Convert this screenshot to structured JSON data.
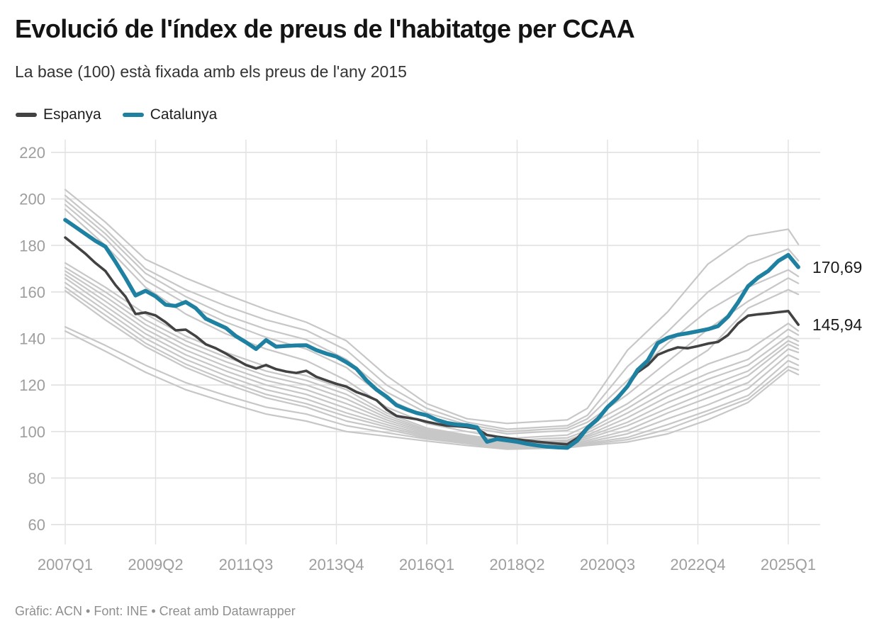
{
  "header": {
    "title": "Evolució de l'índex de preus de l'habitatge per CCAA",
    "subtitle": "La base (100) està fixada amb els preus de l'any 2015"
  },
  "legend": {
    "items": [
      {
        "label": "Espanya",
        "color": "#424242"
      },
      {
        "label": "Catalunya",
        "color": "#1f81a2"
      }
    ]
  },
  "footer": {
    "text": "Gràfic: ACN • Font: INE • Creat amb Datawrapper"
  },
  "chart_data": {
    "type": "line",
    "title": "Evolució de l'índex de preus de l'habitatge per CCAA",
    "subtitle": "La base (100) està fixada amb els preus de l'any 2015",
    "x_unit": "quarter index from 2007Q1 (one value per quarter, last = 2025Q2)",
    "x_axis": {
      "ticks": [
        {
          "label": "2007Q1",
          "q": 0
        },
        {
          "label": "2009Q2",
          "q": 9
        },
        {
          "label": "2011Q3",
          "q": 18
        },
        {
          "label": "2013Q4",
          "q": 27
        },
        {
          "label": "2016Q1",
          "q": 36
        },
        {
          "label": "2018Q2",
          "q": 45
        },
        {
          "label": "2020Q3",
          "q": 54
        },
        {
          "label": "2022Q4",
          "q": 63
        },
        {
          "label": "2025Q1",
          "q": 72
        }
      ],
      "quarters_total": 73
    },
    "y_axis": {
      "ticks": [
        220,
        200,
        180,
        160,
        140,
        120,
        100,
        80,
        60
      ],
      "min": 60,
      "max": 220
    },
    "grid": true,
    "legend_position": "top-left",
    "colors": {
      "catalunya": "#1f81a2",
      "espanya": "#424242",
      "other_regions": "#c7c7c7",
      "gridline": "#e2e2e2",
      "tick_text": "#9e9e9e",
      "end_label_text": "#1a1a1a"
    },
    "series": [
      {
        "name": "ccaa-01",
        "color": "#c7c7c7",
        "width": 2.2,
        "q": [
          0,
          4,
          8,
          12,
          16,
          20,
          24,
          28,
          32,
          36,
          40,
          44,
          48,
          50,
          52,
          56,
          60,
          64,
          68,
          72,
          73
        ],
        "values": [
          204,
          190,
          174,
          166,
          159,
          152.5,
          147,
          139,
          124,
          112,
          105.5,
          103.5,
          104.5,
          105,
          110,
          135,
          151.5,
          172,
          184,
          187,
          180.5
        ]
      },
      {
        "name": "ccaa-02",
        "color": "#c7c7c7",
        "width": 2.2,
        "q": [
          0,
          4,
          8,
          12,
          16,
          20,
          24,
          28,
          32,
          36,
          40,
          44,
          48,
          50,
          52,
          56,
          60,
          64,
          68,
          72,
          73
        ],
        "values": [
          201.5,
          187,
          170,
          161,
          154,
          148,
          143.5,
          135,
          120,
          110,
          104,
          101,
          102,
          102.5,
          107,
          128,
          143,
          160,
          172,
          178.5,
          173.5
        ]
      },
      {
        "name": "ccaa-03",
        "color": "#c7c7c7",
        "width": 2.2,
        "q": [
          0,
          4,
          8,
          12,
          16,
          20,
          24,
          28,
          32,
          36,
          40,
          44,
          48,
          50,
          52,
          56,
          60,
          64,
          68,
          72,
          73
        ],
        "values": [
          199.5,
          185,
          168,
          158,
          150,
          144,
          139.5,
          131,
          117,
          108,
          103,
          100,
          101,
          101.5,
          105.5,
          122,
          138,
          152,
          162,
          169.5,
          166.7
        ]
      },
      {
        "name": "ccaa-04",
        "color": "#c7c7c7",
        "width": 2.2,
        "q": [
          0,
          4,
          8,
          12,
          16,
          20,
          24,
          28,
          32,
          36,
          40,
          44,
          48,
          50,
          52,
          56,
          60,
          64,
          68,
          72,
          73
        ],
        "values": [
          197.5,
          183,
          165,
          155,
          147,
          140.5,
          135.5,
          127.5,
          114,
          106.5,
          102,
          99,
          100,
          100.5,
          104,
          116,
          130,
          144,
          156,
          166,
          163.7
        ]
      },
      {
        "name": "ccaa-05",
        "color": "#c7c7c7",
        "width": 2.2,
        "q": [
          0,
          4,
          8,
          12,
          16,
          20,
          24,
          28,
          32,
          36,
          40,
          44,
          48,
          50,
          52,
          56,
          60,
          64,
          68,
          72,
          73
        ],
        "values": [
          195.5,
          180,
          162,
          150.5,
          142,
          135.5,
          130.5,
          122,
          110.5,
          103.5,
          100,
          97,
          98,
          98.5,
          102.5,
          112,
          124,
          135,
          153,
          161,
          159
        ]
      },
      {
        "name": "ccaa-06",
        "color": "#c7c7c7",
        "width": 2.2,
        "q": [
          0,
          4,
          8,
          12,
          16,
          20,
          24,
          28,
          32,
          36,
          40,
          44,
          48,
          50,
          52,
          56,
          60,
          64,
          68,
          72,
          73
        ],
        "values": [
          172.5,
          162,
          150.5,
          141,
          134,
          128,
          124,
          118,
          108,
          101.5,
          98.5,
          96,
          97,
          97.3,
          100.5,
          110,
          120.5,
          129,
          135,
          146.5,
          143.3
        ]
      },
      {
        "name": "ccaa-07",
        "color": "#c7c7c7",
        "width": 2.2,
        "q": [
          0,
          4,
          8,
          12,
          16,
          20,
          24,
          28,
          32,
          36,
          40,
          44,
          48,
          50,
          52,
          56,
          60,
          64,
          68,
          72,
          73
        ],
        "values": [
          170.5,
          160,
          148,
          139,
          132,
          126,
          122,
          116,
          107,
          100.8,
          98,
          95.5,
          96,
          96.3,
          99.5,
          108,
          117.5,
          125,
          131,
          144,
          141.5
        ]
      },
      {
        "name": "ccaa-08",
        "color": "#c7c7c7",
        "width": 2.2,
        "q": [
          0,
          4,
          8,
          12,
          16,
          20,
          24,
          28,
          32,
          36,
          40,
          44,
          48,
          50,
          52,
          56,
          60,
          64,
          68,
          72,
          73
        ],
        "values": [
          169,
          158,
          146,
          137,
          130,
          124,
          120,
          114,
          106,
          100.2,
          97.5,
          95,
          95.5,
          95.8,
          98.5,
          106,
          115,
          122.5,
          128.5,
          141,
          138.8
        ]
      },
      {
        "name": "ccaa-09",
        "color": "#c7c7c7",
        "width": 2.2,
        "q": [
          0,
          4,
          8,
          12,
          16,
          20,
          24,
          28,
          32,
          36,
          40,
          44,
          48,
          50,
          52,
          56,
          60,
          64,
          68,
          72,
          73
        ],
        "values": [
          167.5,
          156,
          144,
          135,
          128,
          122,
          118,
          112,
          105,
          99.6,
          97,
          94.5,
          95,
          95.3,
          97.8,
          104,
          112.5,
          119.5,
          126,
          139,
          137
        ]
      },
      {
        "name": "ccaa-10",
        "color": "#c7c7c7",
        "width": 2.2,
        "q": [
          0,
          4,
          8,
          12,
          16,
          20,
          24,
          28,
          32,
          36,
          40,
          44,
          48,
          50,
          52,
          56,
          60,
          64,
          68,
          72,
          73
        ],
        "values": [
          166,
          154,
          142,
          133,
          126,
          120,
          116,
          110,
          104,
          99,
          96.5,
          94,
          94.5,
          94.8,
          97,
          102.5,
          110,
          117,
          124,
          137.5,
          135.5
        ]
      },
      {
        "name": "ccaa-11",
        "color": "#c7c7c7",
        "width": 2.2,
        "q": [
          0,
          4,
          8,
          12,
          16,
          20,
          24,
          28,
          32,
          36,
          40,
          44,
          48,
          50,
          52,
          56,
          60,
          64,
          68,
          72,
          73
        ],
        "values": [
          164,
          152,
          140,
          131,
          124,
          118,
          114,
          108,
          103,
          98.4,
          96,
          93.5,
          94,
          94.3,
          96.2,
          100.5,
          108,
          114.5,
          121,
          135.5,
          134
        ]
      },
      {
        "name": "ccaa-12",
        "color": "#c7c7c7",
        "width": 2.2,
        "q": [
          0,
          4,
          8,
          12,
          16,
          20,
          24,
          28,
          32,
          36,
          40,
          44,
          48,
          50,
          52,
          56,
          60,
          64,
          68,
          72,
          73
        ],
        "values": [
          162,
          150,
          138,
          129,
          122,
          116,
          112,
          106.5,
          102,
          97.8,
          95.5,
          93,
          93.5,
          93.8,
          95.5,
          99,
          105.5,
          111.5,
          118.5,
          133,
          131
        ]
      },
      {
        "name": "ccaa-13",
        "color": "#c7c7c7",
        "width": 2.2,
        "q": [
          0,
          4,
          8,
          12,
          16,
          20,
          24,
          28,
          32,
          36,
          40,
          44,
          48,
          50,
          52,
          56,
          60,
          64,
          68,
          72,
          73
        ],
        "values": [
          160.5,
          148,
          136.5,
          127.5,
          120.5,
          114.5,
          110.5,
          104.5,
          101,
          97.2,
          95,
          92.8,
          93.2,
          93.5,
          95,
          97.5,
          103,
          109,
          115.5,
          130.5,
          128.5
        ]
      },
      {
        "name": "ccaa-14",
        "color": "#c7c7c7",
        "width": 2.2,
        "q": [
          0,
          4,
          8,
          12,
          16,
          20,
          24,
          28,
          32,
          36,
          40,
          44,
          48,
          50,
          52,
          56,
          60,
          64,
          68,
          72,
          73
        ],
        "values": [
          145,
          137,
          128.5,
          121,
          115.5,
          110.5,
          107.5,
          102.5,
          99.5,
          96.8,
          94.8,
          92.6,
          93,
          93.3,
          94.5,
          96.5,
          101,
          107.5,
          114,
          128,
          126.5
        ]
      },
      {
        "name": "ccaa-15",
        "color": "#c7c7c7",
        "width": 2.2,
        "q": [
          0,
          4,
          8,
          12,
          16,
          20,
          24,
          28,
          32,
          36,
          40,
          44,
          48,
          50,
          52,
          56,
          60,
          64,
          68,
          72,
          73
        ],
        "values": [
          143.2,
          134.5,
          125.5,
          118,
          112.5,
          107.5,
          104.5,
          100,
          98,
          95.9,
          94,
          92.4,
          92.8,
          93,
          94,
          95.5,
          99,
          105,
          112.5,
          126.5,
          124.5
        ]
      },
      {
        "name": "Espanya",
        "color": "#424242",
        "width": 3.6,
        "highlight": true,
        "end_label": "145,94",
        "end_value": 145.94,
        "values": [
          183.4,
          180,
          176.5,
          172.5,
          169,
          163,
          158,
          150.5,
          151.2,
          149.9,
          147,
          143.5,
          143.8,
          141,
          137.5,
          135.8,
          133.5,
          131,
          128.6,
          127.1,
          128.6,
          126.8,
          125.8,
          125.2,
          126.1,
          123.5,
          122,
          120.5,
          119.3,
          117,
          115.4,
          113.5,
          109.5,
          106.7,
          106,
          105.3,
          104.2,
          103.3,
          102.5,
          102.3,
          101.9,
          101.2,
          98.5,
          97.8,
          97.2,
          96.6,
          96.1,
          95.6,
          95.2,
          94.8,
          94.5,
          97.2,
          102,
          105.7,
          110.5,
          115,
          119.5,
          125.5,
          128.5,
          133,
          134.8,
          136.2,
          135.8,
          136.7,
          137.8,
          138.5,
          141.5,
          146.5,
          149.8,
          150.4,
          150.8,
          151.3,
          151.8,
          145.94
        ]
      },
      {
        "name": "Catalunya",
        "color": "#1f81a2",
        "width": 5.6,
        "highlight": true,
        "end_label": "170,69",
        "end_value": 170.69,
        "values": [
          191,
          188,
          185,
          182,
          179.5,
          173,
          166,
          158.5,
          160.5,
          158.1,
          154.5,
          154,
          155.7,
          153,
          148.5,
          146.5,
          144.5,
          141,
          138.4,
          135.5,
          139.3,
          136.5,
          136.8,
          137,
          137.1,
          135,
          133.5,
          132.2,
          129.8,
          127,
          122,
          118,
          115,
          111.3,
          109.5,
          108,
          107,
          105,
          103.7,
          103,
          102.7,
          101.8,
          95.6,
          96.8,
          96.2,
          95.6,
          94.7,
          94,
          93.5,
          93.2,
          93,
          96.1,
          101.5,
          105.2,
          110.5,
          114.5,
          119.5,
          126.5,
          130.5,
          138,
          140.3,
          141.6,
          142.3,
          143.1,
          144,
          145.3,
          149.4,
          155.5,
          162.5,
          166.2,
          169,
          173.3,
          175.9,
          170.69
        ]
      }
    ]
  }
}
